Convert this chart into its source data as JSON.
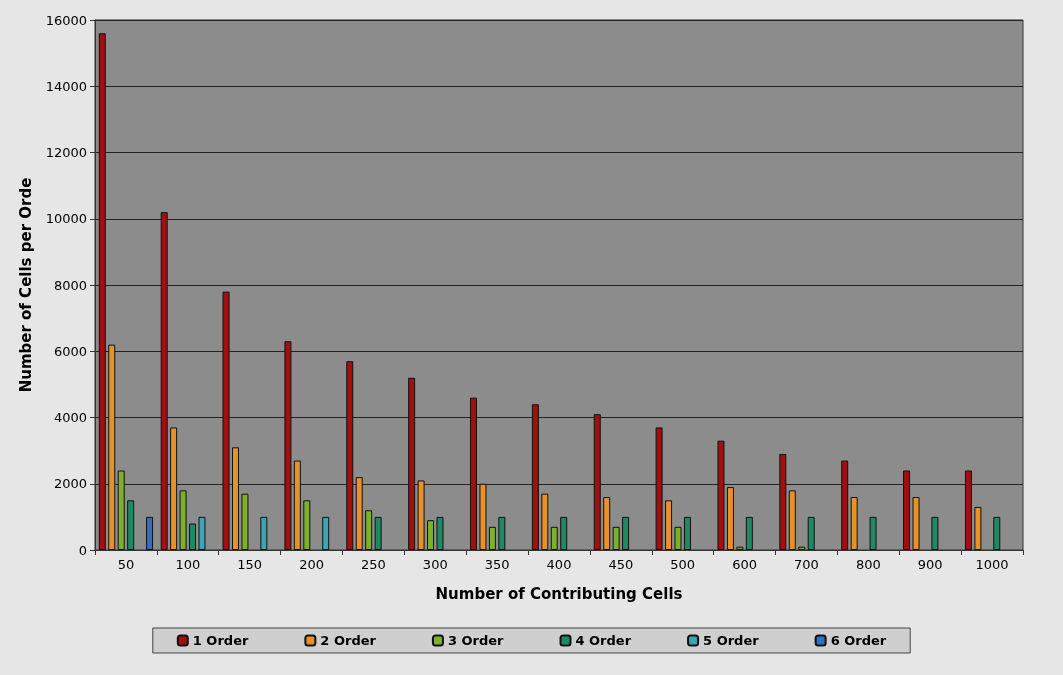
{
  "chart_data": {
    "type": "bar",
    "xlabel": "Number of Contributing Cells",
    "ylabel": "Number of Cells per Orde",
    "categories": [
      "50",
      "100",
      "150",
      "200",
      "250",
      "300",
      "350",
      "400",
      "450",
      "500",
      "600",
      "700",
      "800",
      "900",
      "1000"
    ],
    "series": [
      {
        "name": "1 Order",
        "color": "#a01010",
        "values": [
          15600,
          10200,
          7800,
          6300,
          5700,
          5200,
          4600,
          4400,
          4100,
          3700,
          3300,
          2900,
          2700,
          2400,
          2400
        ]
      },
      {
        "name": "2 Order",
        "color": "#e8902a",
        "values": [
          6200,
          3700,
          3100,
          2700,
          2200,
          2100,
          2000,
          1700,
          1600,
          1500,
          1900,
          1800,
          1600,
          1600,
          1300
        ]
      },
      {
        "name": "3 Order",
        "color": "#7cb22a",
        "values": [
          2400,
          1800,
          1700,
          1500,
          1200,
          900,
          700,
          700,
          700,
          700,
          100,
          100,
          null,
          null,
          null
        ]
      },
      {
        "name": "4 Order",
        "color": "#1e8a64",
        "values": [
          1500,
          800,
          null,
          null,
          1000,
          1000,
          1000,
          1000,
          1000,
          1000,
          1000,
          1000,
          1000,
          1000,
          1000
        ]
      },
      {
        "name": "5 Order",
        "color": "#3aa6b4",
        "values": [
          null,
          1000,
          1000,
          1000,
          null,
          null,
          null,
          null,
          null,
          null,
          null,
          null,
          null,
          null,
          null
        ]
      },
      {
        "name": "6 Order",
        "color": "#2f6fc0",
        "values": [
          1000,
          null,
          null,
          null,
          null,
          null,
          null,
          null,
          null,
          null,
          null,
          null,
          null,
          null,
          null
        ]
      }
    ],
    "ylim": [
      0,
      16000
    ],
    "yticks": [
      0,
      2000,
      4000,
      6000,
      8000,
      10000,
      12000,
      14000,
      16000
    ],
    "grid": "y",
    "legend": "bottom"
  }
}
